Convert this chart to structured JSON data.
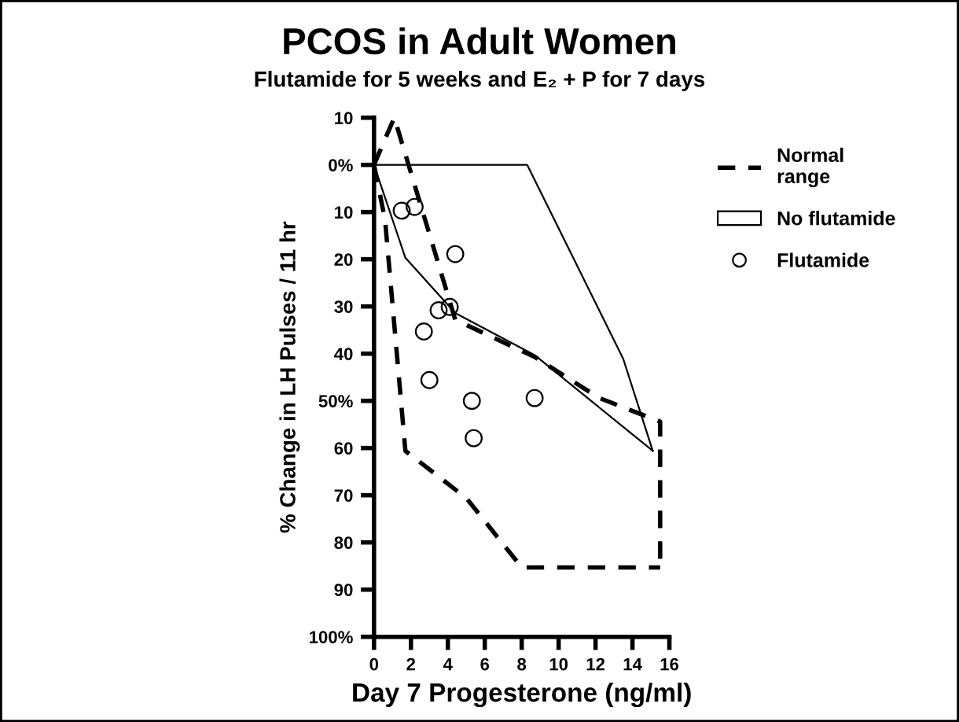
{
  "chart_data": {
    "type": "line",
    "title": "PCOS in Adult Women",
    "subtitle": "Flutamide for 5 weeks and E₂ + P for 7 days",
    "xlabel": "Day 7 Progesterone (ng/ml)",
    "ylabel": "% Change in LH Pulses / 11 hr",
    "xlim": [
      0,
      16
    ],
    "xticks": [
      0,
      2,
      4,
      6,
      8,
      10,
      12,
      14,
      16
    ],
    "ylim": [
      -100,
      10
    ],
    "yticks": [
      {
        "value": 10,
        "label": "10"
      },
      {
        "value": 0,
        "label": "0%"
      },
      {
        "value": -10,
        "label": "10"
      },
      {
        "value": -20,
        "label": "20"
      },
      {
        "value": -30,
        "label": "30"
      },
      {
        "value": -40,
        "label": "40"
      },
      {
        "value": -50,
        "label": "50%"
      },
      {
        "value": -60,
        "label": "60"
      },
      {
        "value": -70,
        "label": "70"
      },
      {
        "value": -80,
        "label": "80"
      },
      {
        "value": -90,
        "label": "90"
      },
      {
        "value": -100,
        "label": "100%"
      }
    ],
    "grid": false,
    "legend": "right",
    "series": [
      {
        "name": "Normal\nrange",
        "line_style": "dashed",
        "marker": "none",
        "color": "#000000",
        "x": [
          0,
          1.1,
          4.4,
          8.7,
          12.2,
          15.5,
          15.5
        ],
        "values": [
          0,
          10,
          -32.8,
          -40.7,
          -49.4,
          -54.4,
          -85.3
        ]
      },
      {
        "line_style": "dashed",
        "marker": "none",
        "color": "#000000",
        "x": [
          0,
          0.6,
          1.7,
          5.0,
          8.0,
          15.5
        ],
        "values": [
          0,
          -11.7,
          -60.6,
          -70.6,
          -85.3,
          -85.3
        ]
      },
      {
        "name": "No flutamide",
        "line_style": "solid",
        "marker": "none",
        "color": "#000000",
        "x": [
          0,
          8.3,
          13.5,
          15.1
        ],
        "values": [
          0,
          0,
          -41.1,
          -60.6
        ]
      },
      {
        "line_style": "solid",
        "marker": "none",
        "color": "#000000",
        "x": [
          0,
          1.7,
          4.4,
          8.7,
          15.1
        ],
        "values": [
          0,
          -19.7,
          -31.4,
          -40.3,
          -60.6
        ]
      },
      {
        "name": "Flutamide",
        "type": "scatter",
        "marker": "circle",
        "color": "#000000",
        "x": [
          1.5,
          2.2,
          4.4,
          3.5,
          4.1,
          2.7,
          3.0,
          5.3,
          8.7,
          5.4
        ],
        "values": [
          -9.7,
          -8.9,
          -18.9,
          -30.8,
          -30.1,
          -35.3,
          -45.6,
          -50.0,
          -49.4,
          -57.9
        ]
      }
    ]
  }
}
